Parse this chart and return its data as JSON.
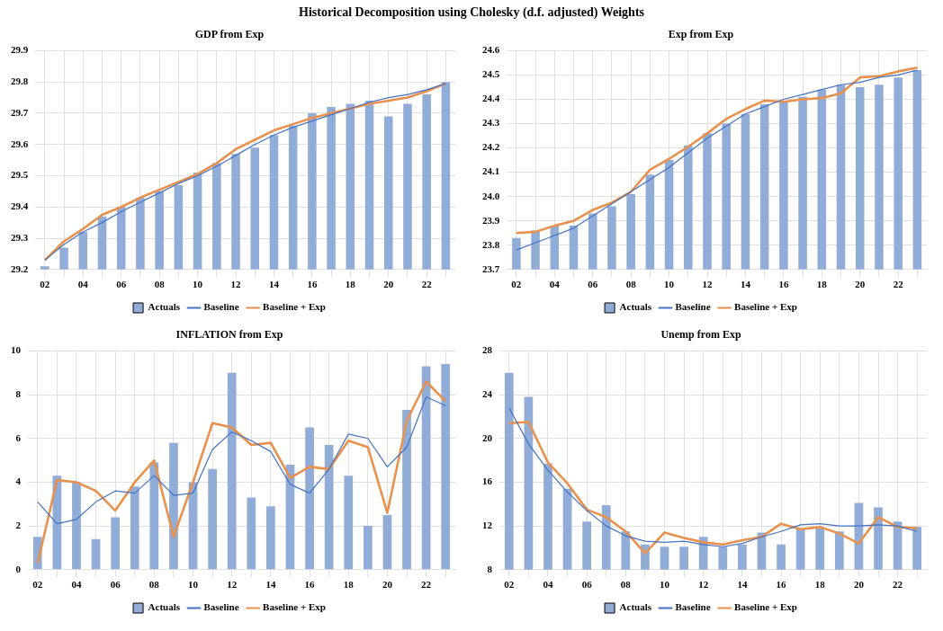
{
  "chart_data": [
    {
      "type": "other",
      "title": "Historical Decomposition using Cholesky (d.f. adjusted) Weights"
    },
    {
      "type": "bar",
      "title": "GDP from Exp",
      "categories": [
        "02",
        null,
        "04",
        null,
        "06",
        null,
        "08",
        null,
        "10",
        null,
        "12",
        null,
        "14",
        null,
        "16",
        null,
        "18",
        null,
        "20",
        null,
        "22",
        null
      ],
      "series": [
        {
          "name": "Actuals",
          "type": "bar",
          "color": "#92acd8",
          "values": [
            29.21,
            29.27,
            29.32,
            29.37,
            29.4,
            29.43,
            29.45,
            29.47,
            29.51,
            29.54,
            29.57,
            29.59,
            29.63,
            29.66,
            29.7,
            29.72,
            29.73,
            29.74,
            29.69,
            29.73,
            29.76,
            29.8
          ]
        },
        {
          "name": "Baseline",
          "type": "line",
          "color": "#4472c4",
          "values": [
            29.23,
            29.28,
            29.32,
            29.35,
            29.385,
            29.415,
            29.445,
            29.475,
            29.5,
            29.53,
            29.565,
            29.6,
            29.63,
            29.655,
            29.675,
            29.695,
            29.715,
            29.735,
            29.75,
            29.76,
            29.775,
            29.795
          ]
        },
        {
          "name": "Baseline + Exp",
          "type": "line",
          "color": "#e8914c",
          "values": [
            29.23,
            29.29,
            29.33,
            29.375,
            29.4,
            29.43,
            29.455,
            29.48,
            29.505,
            29.54,
            29.585,
            29.615,
            29.645,
            29.665,
            29.685,
            29.7,
            29.715,
            29.73,
            29.74,
            29.75,
            29.77,
            29.795
          ]
        }
      ],
      "ylim": [
        29.2,
        29.9
      ],
      "yticks": [
        29.2,
        29.3,
        29.4,
        29.5,
        29.6,
        29.7,
        29.8,
        29.9
      ],
      "grid": true,
      "legend": "bottom",
      "marker": "none"
    },
    {
      "type": "bar",
      "title": "Exp from Exp",
      "categories": [
        "02",
        null,
        "04",
        null,
        "06",
        null,
        "08",
        null,
        "10",
        null,
        "12",
        null,
        "14",
        null,
        "16",
        null,
        "18",
        null,
        "20",
        null,
        "22",
        null
      ],
      "series": [
        {
          "name": "Actuals",
          "type": "bar",
          "color": "#92acd8",
          "values": [
            23.83,
            23.86,
            23.88,
            23.88,
            23.93,
            23.96,
            24.01,
            24.09,
            24.15,
            24.21,
            24.26,
            24.3,
            24.34,
            24.38,
            24.39,
            24.41,
            24.44,
            24.46,
            24.45,
            24.46,
            24.49,
            24.52
          ]
        },
        {
          "name": "Baseline",
          "type": "line",
          "color": "#4472c4",
          "values": [
            23.78,
            23.81,
            23.84,
            23.87,
            23.92,
            23.97,
            24.02,
            24.07,
            24.12,
            24.18,
            24.24,
            24.29,
            24.34,
            24.37,
            24.4,
            24.42,
            24.44,
            24.46,
            24.47,
            24.49,
            24.5,
            24.52
          ]
        },
        {
          "name": "Baseline + Exp",
          "type": "line",
          "color": "#e8914c",
          "values": [
            23.85,
            23.855,
            23.88,
            23.9,
            23.945,
            23.975,
            24.02,
            24.11,
            24.155,
            24.205,
            24.26,
            24.32,
            24.36,
            24.395,
            24.39,
            24.4,
            24.405,
            24.425,
            24.49,
            24.495,
            24.515,
            24.53
          ]
        }
      ],
      "ylim": [
        23.7,
        24.6
      ],
      "yticks": [
        23.7,
        23.8,
        23.9,
        {
          "value": 24,
          "label": "24.0"
        },
        24.1,
        24.2,
        24.3,
        24.4,
        24.5,
        24.6
      ],
      "grid": true,
      "legend": "bottom",
      "marker": "none"
    },
    {
      "type": "bar",
      "title": "INFLATION from Exp",
      "categories": [
        "02",
        null,
        "04",
        null,
        "06",
        null,
        "08",
        null,
        "10",
        null,
        "12",
        null,
        "14",
        null,
        "16",
        null,
        "18",
        null,
        "20",
        null,
        "22",
        null
      ],
      "series": [
        {
          "name": "Actuals",
          "type": "bar",
          "color": "#92acd8",
          "values": [
            1.5,
            4.3,
            4.0,
            1.4,
            2.4,
            3.8,
            4.9,
            5.8,
            4.0,
            4.6,
            9.0,
            3.3,
            2.9,
            4.8,
            6.5,
            5.7,
            4.3,
            2.0,
            2.5,
            7.3,
            9.3,
            9.4
          ]
        },
        {
          "name": "Baseline",
          "type": "line",
          "color": "#4472c4",
          "values": [
            3.1,
            2.1,
            2.3,
            3.1,
            3.6,
            3.5,
            4.3,
            3.4,
            3.5,
            5.5,
            6.3,
            5.9,
            5.4,
            3.9,
            3.5,
            4.6,
            6.2,
            6.0,
            4.7,
            5.6,
            7.9,
            7.5
          ]
        },
        {
          "name": "Baseline + Exp",
          "type": "line",
          "color": "#e8914c",
          "values": [
            0.3,
            4.1,
            4.0,
            3.6,
            2.7,
            4.0,
            5.0,
            1.5,
            4.0,
            6.7,
            6.5,
            5.7,
            5.8,
            4.2,
            4.7,
            4.6,
            5.9,
            5.6,
            2.6,
            6.8,
            8.6,
            7.7
          ]
        }
      ],
      "ylim": [
        0,
        10
      ],
      "yticks": [
        0,
        2,
        4,
        6,
        8,
        10
      ],
      "grid": true,
      "legend": "bottom",
      "marker": "none"
    },
    {
      "type": "bar",
      "title": "Unemp from Exp",
      "categories": [
        "02",
        null,
        "04",
        null,
        "06",
        null,
        "08",
        null,
        "10",
        null,
        "12",
        null,
        "14",
        null,
        "16",
        null,
        "18",
        null,
        "20",
        null,
        "22",
        null
      ],
      "series": [
        {
          "name": "Actuals",
          "type": "bar",
          "color": "#92acd8",
          "values": [
            26.0,
            23.8,
            17.7,
            15.4,
            12.4,
            13.9,
            11.5,
            10.3,
            10.1,
            10.1,
            11.0,
            10.1,
            10.3,
            11.4,
            10.3,
            11.7,
            11.8,
            11.5,
            14.1,
            13.7,
            12.4,
            11.9
          ]
        },
        {
          "name": "Baseline",
          "type": "line",
          "color": "#4472c4",
          "values": [
            22.8,
            19.5,
            17.1,
            15.1,
            13.4,
            12.0,
            11.1,
            10.6,
            10.5,
            10.6,
            10.3,
            10.1,
            10.4,
            11.0,
            11.5,
            12.1,
            12.2,
            12.0,
            12.0,
            12.1,
            12.0,
            11.5
          ]
        },
        {
          "name": "Baseline + Exp",
          "type": "line",
          "color": "#e8914c",
          "values": [
            21.4,
            21.5,
            17.8,
            15.9,
            13.5,
            12.8,
            11.5,
            9.5,
            11.4,
            10.9,
            10.5,
            10.3,
            10.7,
            11.0,
            12.2,
            11.7,
            11.9,
            11.3,
            10.4,
            12.8,
            11.9,
            11.8
          ]
        }
      ],
      "ylim": [
        8,
        28
      ],
      "yticks": [
        8,
        12,
        16,
        20,
        24,
        28
      ],
      "grid": true,
      "legend": "bottom",
      "marker": "none"
    }
  ]
}
